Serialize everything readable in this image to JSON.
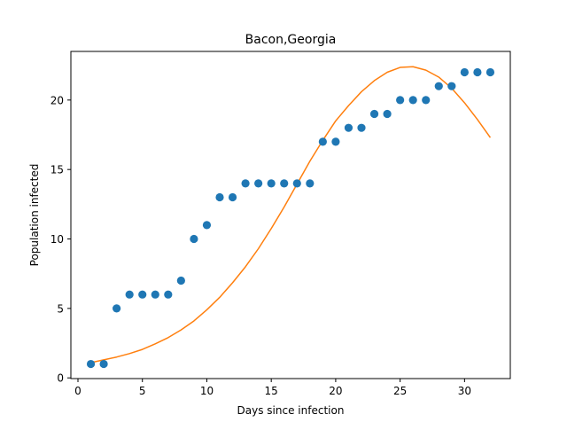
{
  "chart_data": {
    "type": "scatter",
    "title": "Bacon,Georgia",
    "xlabel": "Days since infection",
    "ylabel": "Population infected",
    "xlim": [
      -0.55,
      33.55
    ],
    "ylim": [
      -0.05,
      23.5
    ],
    "xticks": [
      0,
      5,
      10,
      15,
      20,
      25,
      30
    ],
    "yticks": [
      0,
      5,
      10,
      15,
      20
    ],
    "grid": false,
    "colors": {
      "observed": "#1f77b4",
      "fit": "#ff7f0e"
    },
    "series": [
      {
        "kind": "scatter",
        "x": [
          1,
          2,
          3,
          4,
          5,
          6,
          7,
          8,
          9,
          10,
          11,
          12,
          13,
          14,
          15,
          16,
          17,
          18,
          19,
          20,
          21,
          22,
          23,
          24,
          25,
          26,
          27,
          28,
          29,
          30,
          31,
          32
        ],
        "y": [
          1,
          1,
          5,
          6,
          6,
          6,
          6,
          7,
          10,
          11,
          13,
          13,
          14,
          14,
          14,
          14,
          14,
          14,
          17,
          17,
          18,
          18,
          19,
          19,
          20,
          20,
          20,
          21,
          21,
          22,
          22,
          22
        ]
      },
      {
        "kind": "line",
        "x": [
          1,
          2,
          3,
          4,
          5,
          6,
          7,
          8,
          9,
          10,
          11,
          12,
          13,
          14,
          15,
          16,
          17,
          18,
          19,
          20,
          21,
          22,
          23,
          24,
          25,
          26,
          27,
          28,
          29,
          30,
          31,
          32
        ],
        "y": [
          1.1,
          1.3,
          1.5,
          1.75,
          2.05,
          2.45,
          2.9,
          3.45,
          4.1,
          4.9,
          5.8,
          6.85,
          8.0,
          9.3,
          10.75,
          12.3,
          13.95,
          15.6,
          17.1,
          18.5,
          19.6,
          20.6,
          21.4,
          22.0,
          22.35,
          22.4,
          22.15,
          21.65,
          20.85,
          19.8,
          18.6,
          17.3
        ]
      }
    ]
  }
}
